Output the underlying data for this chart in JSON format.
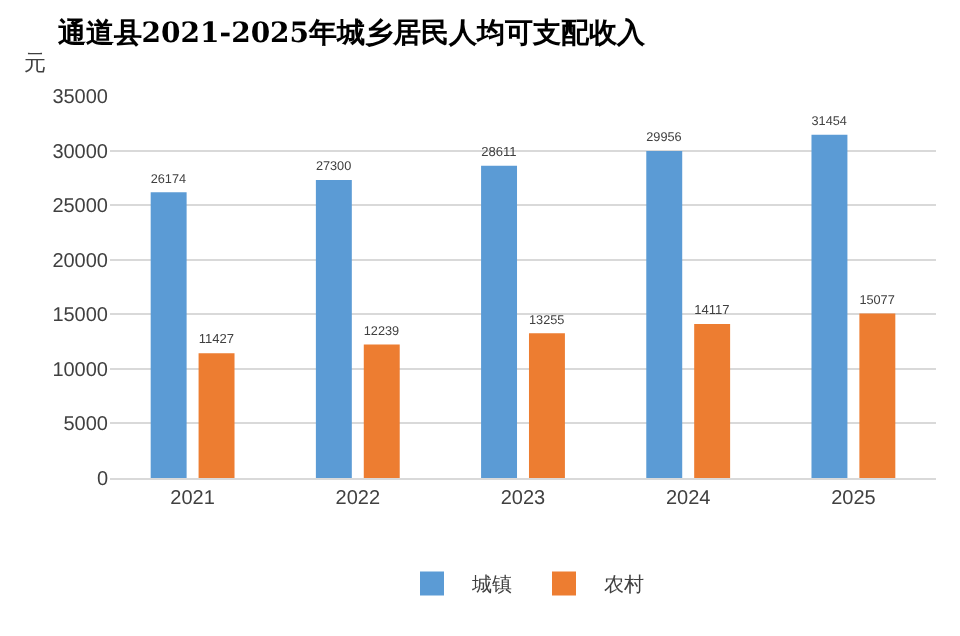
{
  "chart_data": {
    "type": "bar",
    "title": "通道县2021-2025年城乡居民人均可支配收入",
    "ylabel": "元",
    "categories": [
      "2021",
      "2022",
      "2023",
      "2024",
      "2025"
    ],
    "series": [
      {
        "name": "城镇",
        "color": "#5b9bd5",
        "values": [
          26174,
          27300,
          28611,
          29956,
          31454
        ]
      },
      {
        "name": "农村",
        "color": "#ed7d31",
        "values": [
          11427,
          12239,
          13255,
          14117,
          15077
        ]
      }
    ],
    "ylim": [
      0,
      35000
    ],
    "yticks": [
      0,
      5000,
      10000,
      15000,
      20000,
      25000,
      30000,
      35000
    ],
    "grid": "y",
    "legend": "bottom",
    "data_labels": true
  }
}
